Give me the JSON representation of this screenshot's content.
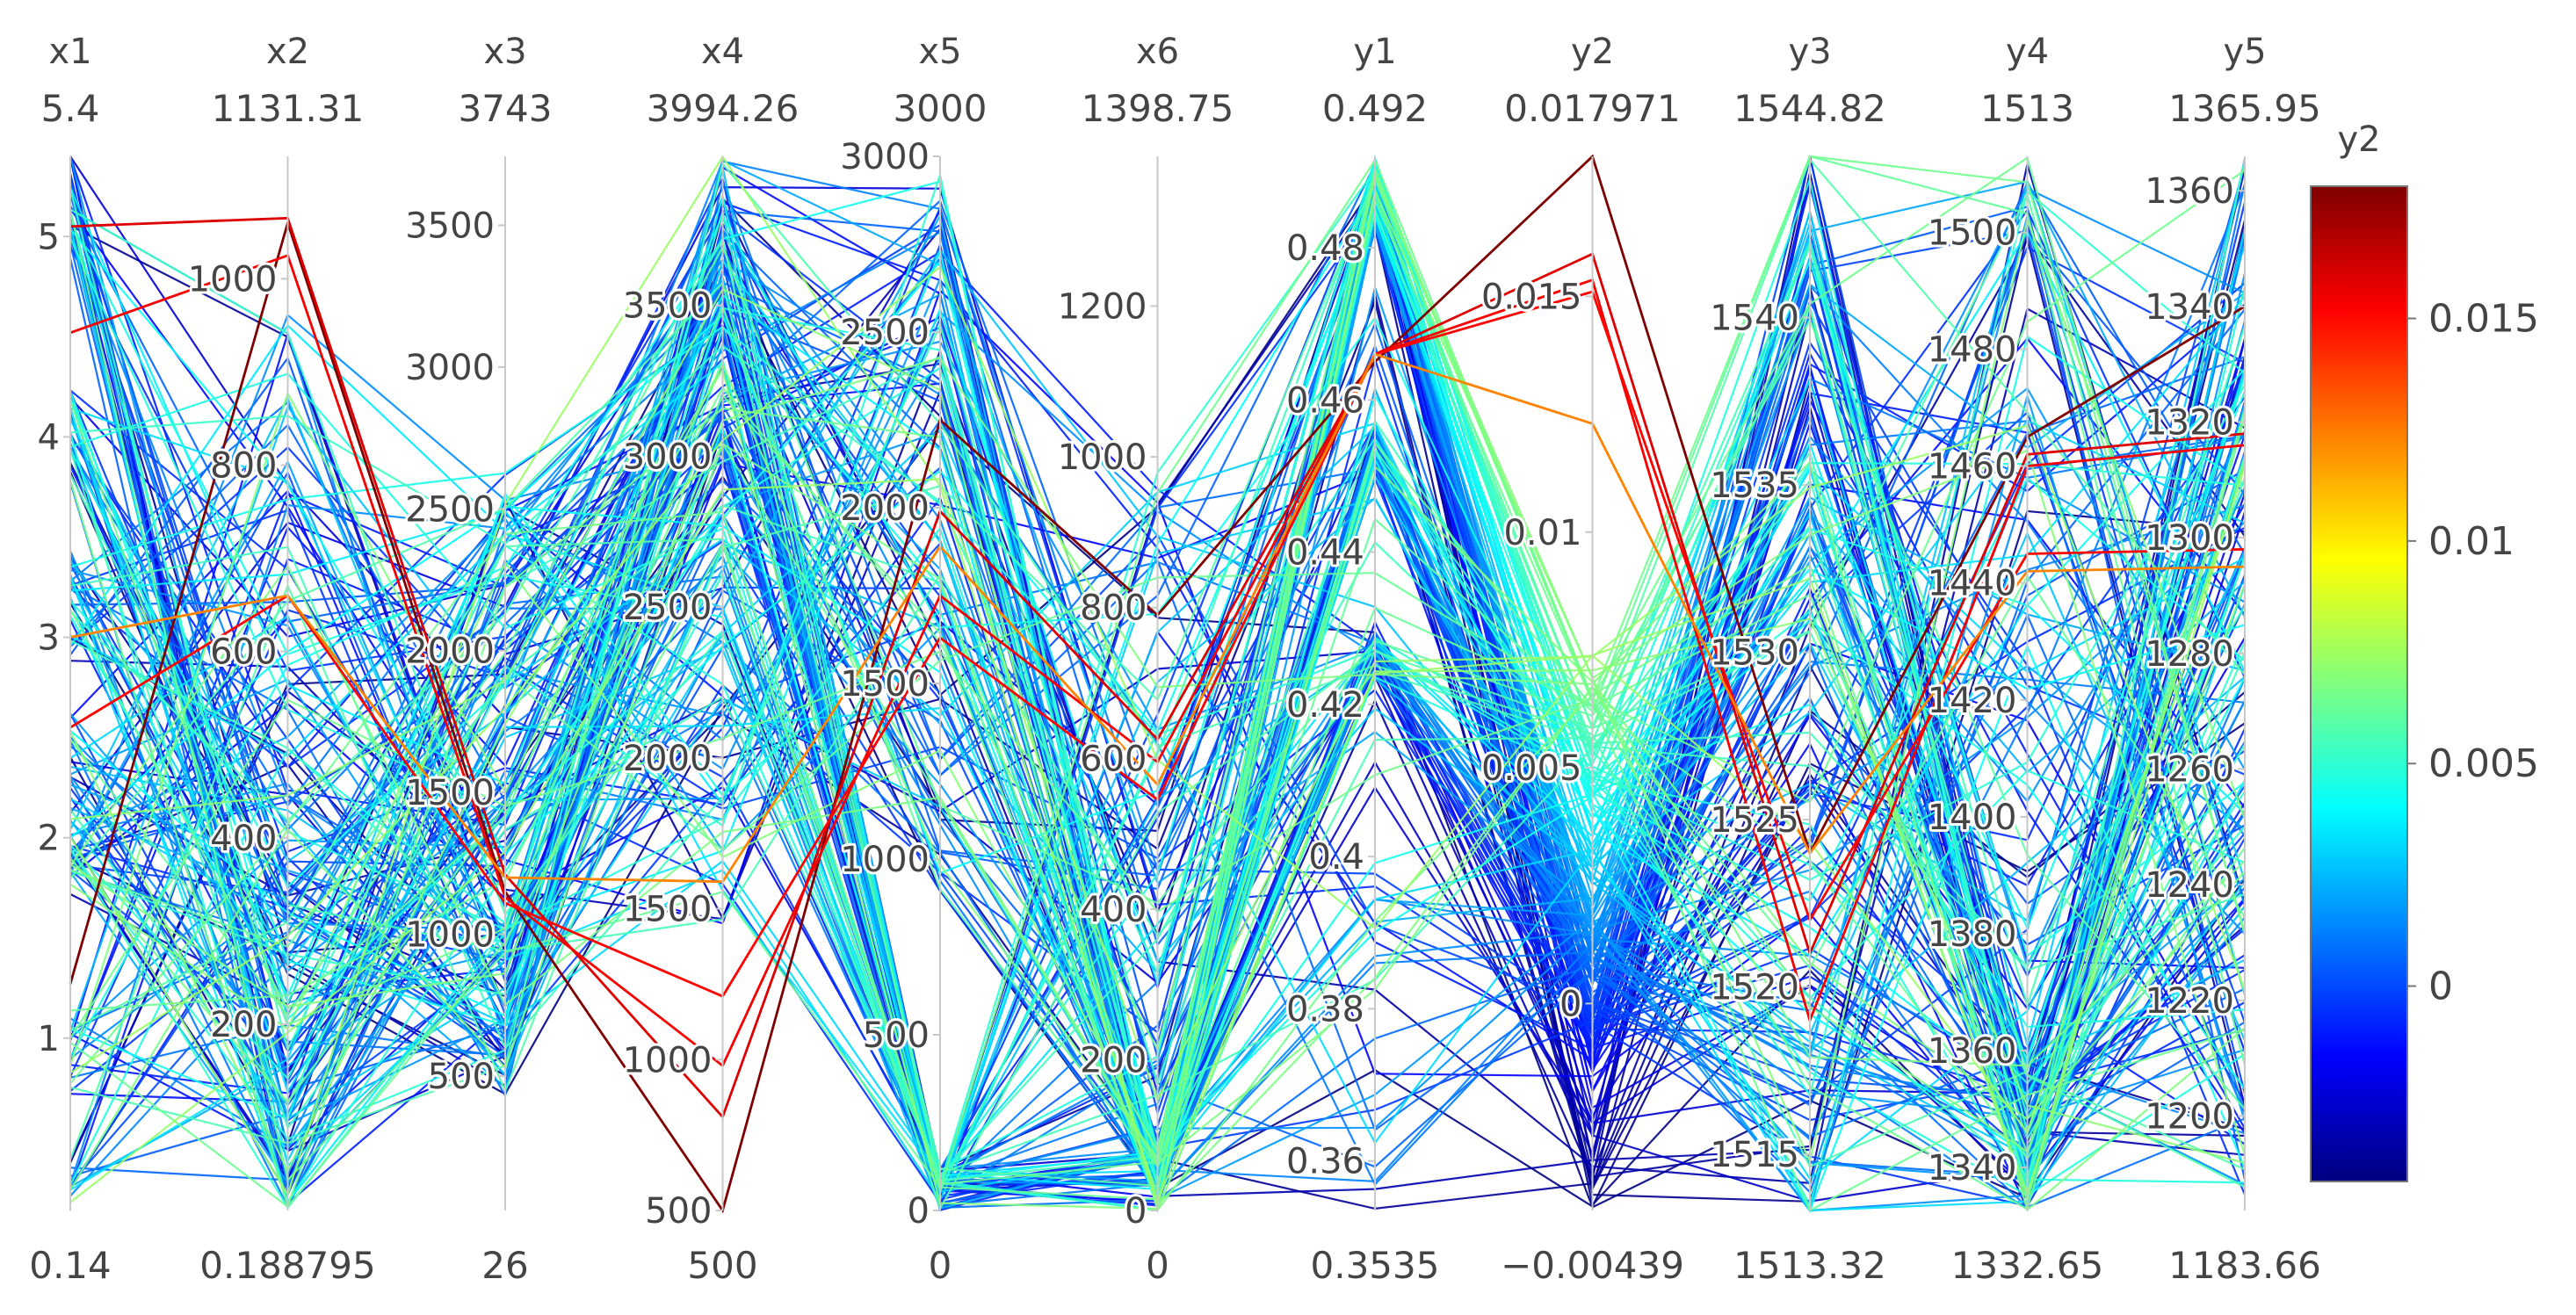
{
  "chart_data": {
    "type": "parallel_coordinates",
    "color_by": "y2",
    "colorscale": "jet",
    "axes": [
      {
        "label": "x1",
        "min": 0.14,
        "max": 5.4,
        "min_label": "0.14",
        "max_label": "5.4",
        "ticks": [
          1,
          2,
          3,
          4,
          5
        ]
      },
      {
        "label": "x2",
        "min": 0.188795,
        "max": 1131.31,
        "min_label": "0.188795",
        "max_label": "1131.31",
        "ticks": [
          200,
          400,
          600,
          800,
          1000
        ]
      },
      {
        "label": "x3",
        "min": 26,
        "max": 3743,
        "min_label": "26",
        "max_label": "3743",
        "ticks": [
          500,
          1000,
          1500,
          2000,
          2500,
          3000,
          3500
        ]
      },
      {
        "label": "x4",
        "min": 500,
        "max": 3994.26,
        "min_label": "500",
        "max_label": "3994.26",
        "ticks": [
          500,
          1000,
          1500,
          2000,
          2500,
          3000,
          3500
        ]
      },
      {
        "label": "x5",
        "min": 0,
        "max": 3000,
        "min_label": "0",
        "max_label": "3000",
        "ticks": [
          0,
          500,
          1000,
          1500,
          2000,
          2500,
          3000
        ]
      },
      {
        "label": "x6",
        "min": 0,
        "max": 1398.75,
        "min_label": "0",
        "max_label": "1398.75",
        "ticks": [
          0,
          200,
          400,
          600,
          800,
          1000,
          1200
        ]
      },
      {
        "label": "y1",
        "min": 0.3535,
        "max": 0.492,
        "min_label": "0.3535",
        "max_label": "0.492",
        "ticks": [
          0.36,
          0.38,
          0.4,
          0.42,
          0.44,
          0.46,
          0.48
        ]
      },
      {
        "label": "y2",
        "min": -0.00439,
        "max": 0.017971,
        "min_label": "−0.00439",
        "max_label": "0.017971",
        "ticks": [
          0,
          0.005,
          0.01,
          0.015
        ]
      },
      {
        "label": "y3",
        "min": 1513.32,
        "max": 1544.82,
        "min_label": "1513.32",
        "max_label": "1544.82",
        "ticks": [
          1515,
          1520,
          1525,
          1530,
          1535,
          1540
        ]
      },
      {
        "label": "y4",
        "min": 1332.65,
        "max": 1513,
        "min_label": "1332.65",
        "max_label": "1513",
        "ticks": [
          1340,
          1360,
          1380,
          1400,
          1420,
          1440,
          1460,
          1480,
          1500
        ]
      },
      {
        "label": "y5",
        "min": 1183.66,
        "max": 1365.95,
        "min_label": "1183.66",
        "max_label": "1365.95",
        "ticks": [
          1200,
          1220,
          1240,
          1260,
          1280,
          1300,
          1320,
          1340,
          1360
        ]
      }
    ],
    "tick_labels": {
      "x1": [
        "1",
        "2",
        "3",
        "4",
        "5"
      ],
      "x2": [
        "200",
        "400",
        "600",
        "800",
        "1000"
      ],
      "x3": [
        "500",
        "1000",
        "1500",
        "2000",
        "2500",
        "3000",
        "3500"
      ],
      "x4": [
        "500",
        "1000",
        "1500",
        "2000",
        "2500",
        "3000",
        "3500"
      ],
      "x5": [
        "0",
        "500",
        "1000",
        "1500",
        "2000",
        "2500",
        "3000"
      ],
      "x6": [
        "0",
        "200",
        "400",
        "600",
        "800",
        "1000",
        "1200"
      ],
      "y1": [
        "0.36",
        "0.38",
        "0.4",
        "0.42",
        "0.44",
        "0.46",
        "0.48"
      ],
      "y2": [
        "0",
        "0.005",
        "0.01",
        "0.015"
      ],
      "y3": [
        "1515",
        "1520",
        "1525",
        "1530",
        "1535",
        "1540"
      ],
      "y4": [
        "1340",
        "1360",
        "1380",
        "1400",
        "1420",
        "1440",
        "1460",
        "1480",
        "1500"
      ],
      "y5": [
        "1200",
        "1220",
        "1240",
        "1260",
        "1280",
        "1300",
        "1320",
        "1340",
        "1360"
      ]
    },
    "colorbar": {
      "title": "y2",
      "min": -0.00439,
      "max": 0.017971,
      "ticks": [
        0,
        0.005,
        0.01,
        0.015
      ],
      "tick_labels": [
        "0",
        "0.005",
        "0.01",
        "0.015"
      ]
    },
    "highlight_lines": [
      {
        "values": [
          1.27,
          1060,
          1150,
          500,
          2250,
          790,
          0.465,
          0.01797,
          1524,
          1465,
          1340
        ]
      },
      {
        "values": [
          5.05,
          1065,
          1210,
          810,
          1990,
          625,
          0.466,
          0.0159,
          1521,
          1462,
          1318
        ]
      },
      {
        "values": [
          4.52,
          1025,
          1130,
          980,
          1750,
          595,
          0.466,
          0.01535,
          1519,
          1460,
          1316
        ]
      },
      {
        "values": [
          2.55,
          660,
          1110,
          1210,
          1630,
          545,
          0.466,
          0.0151,
          1522,
          1445,
          1298
        ]
      },
      {
        "values": [
          3.0,
          660,
          1200,
          1590,
          1890,
          565,
          0.466,
          0.0123,
          1524,
          1442,
          1295
        ]
      }
    ],
    "line_count": 200,
    "random_seed": 7
  }
}
